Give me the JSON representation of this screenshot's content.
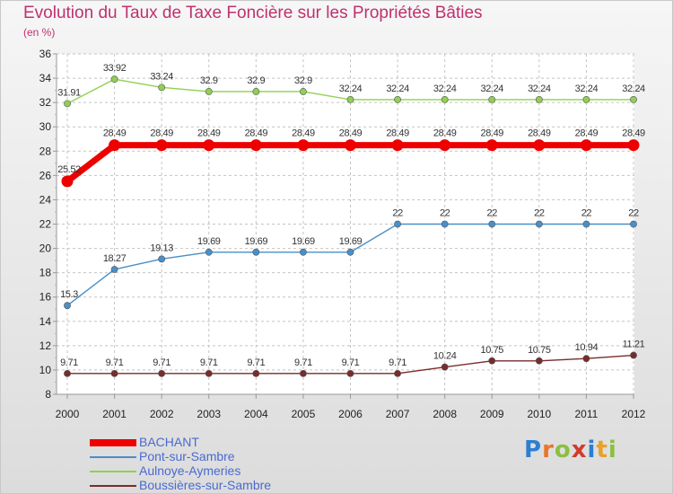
{
  "title": "Evolution du Taux de Taxe Foncière sur les Propriétés Bâties",
  "subtitle": "(en %)",
  "brand": {
    "letters": [
      "P",
      "r",
      "o",
      "x",
      "i",
      "t",
      "i"
    ],
    "colors": [
      "#2b7fd1",
      "#e8762b",
      "#8cbf3f",
      "#d23b2b",
      "#2b7fd1",
      "#e8a12b",
      "#8cbf3f"
    ]
  },
  "chart_data": {
    "type": "line",
    "title": "Evolution du Taux de Taxe Foncière sur les Propriétés Bâties",
    "ylabel": "(en %)",
    "xlabel": "",
    "x": [
      "2000",
      "2001",
      "2002",
      "2003",
      "2004",
      "2005",
      "2006",
      "2007",
      "2008",
      "2009",
      "2010",
      "2011",
      "2012"
    ],
    "ylim": [
      8,
      36
    ],
    "yticks": [
      8,
      10,
      12,
      14,
      16,
      18,
      20,
      22,
      24,
      26,
      28,
      30,
      32,
      34,
      36
    ],
    "grid": true,
    "legend": "bottom-left",
    "series": [
      {
        "name": "Aulnoye-Aymeries",
        "color": "#8fd14f",
        "values": [
          31.91,
          33.92,
          33.24,
          32.9,
          32.9,
          32.9,
          32.24,
          32.24,
          32.24,
          32.24,
          32.24,
          32.24,
          32.24
        ],
        "labels": [
          "31.91",
          "33.92",
          "33.24",
          "32.9",
          "32.9",
          "32.9",
          "32.24",
          "32.24",
          "32.24",
          "32.24",
          "32.24",
          "32.24",
          "32.24"
        ]
      },
      {
        "name": "Pont-sur-Sambre",
        "color": "#4a8fc7",
        "values": [
          15.3,
          18.27,
          19.13,
          19.69,
          19.69,
          19.69,
          19.69,
          22,
          22,
          22,
          22,
          22,
          22
        ],
        "labels": [
          "15.3",
          "18.27",
          "19.13",
          "19.69",
          "19.69",
          "19.69",
          "19.69",
          "22",
          "22",
          "22",
          "22",
          "22",
          "22"
        ]
      },
      {
        "name": "Boussières-sur-Sambre",
        "color": "#7a2b2b",
        "values": [
          9.71,
          9.71,
          9.71,
          9.71,
          9.71,
          9.71,
          9.71,
          9.71,
          10.24,
          10.75,
          10.75,
          10.94,
          11.21
        ],
        "labels": [
          "9.71",
          "9.71",
          "9.71",
          "9.71",
          "9.71",
          "9.71",
          "9.71",
          "9.71",
          "10.24",
          "10.75",
          "10.75",
          "10.94",
          "11.21"
        ]
      },
      {
        "name": "BACHANT",
        "color": "#ee0000",
        "values": [
          25.52,
          28.49,
          28.49,
          28.49,
          28.49,
          28.49,
          28.49,
          28.49,
          28.49,
          28.49,
          28.49,
          28.49,
          28.49
        ],
        "labels": [
          "25.52",
          "28.49",
          "28.49",
          "28.49",
          "28.49",
          "28.49",
          "28.49",
          "28.49",
          "28.49",
          "28.49",
          "28.49",
          "28.49",
          "28.49"
        ]
      }
    ]
  },
  "legend": [
    {
      "name": "BACHANT",
      "color": "#ee0000",
      "thick": true
    },
    {
      "name": "Pont-sur-Sambre",
      "color": "#4a8fc7",
      "thick": false
    },
    {
      "name": "Aulnoye-Aymeries",
      "color": "#8fd14f",
      "thick": false
    },
    {
      "name": "Boussières-sur-Sambre",
      "color": "#7a2b2b",
      "thick": false
    }
  ]
}
